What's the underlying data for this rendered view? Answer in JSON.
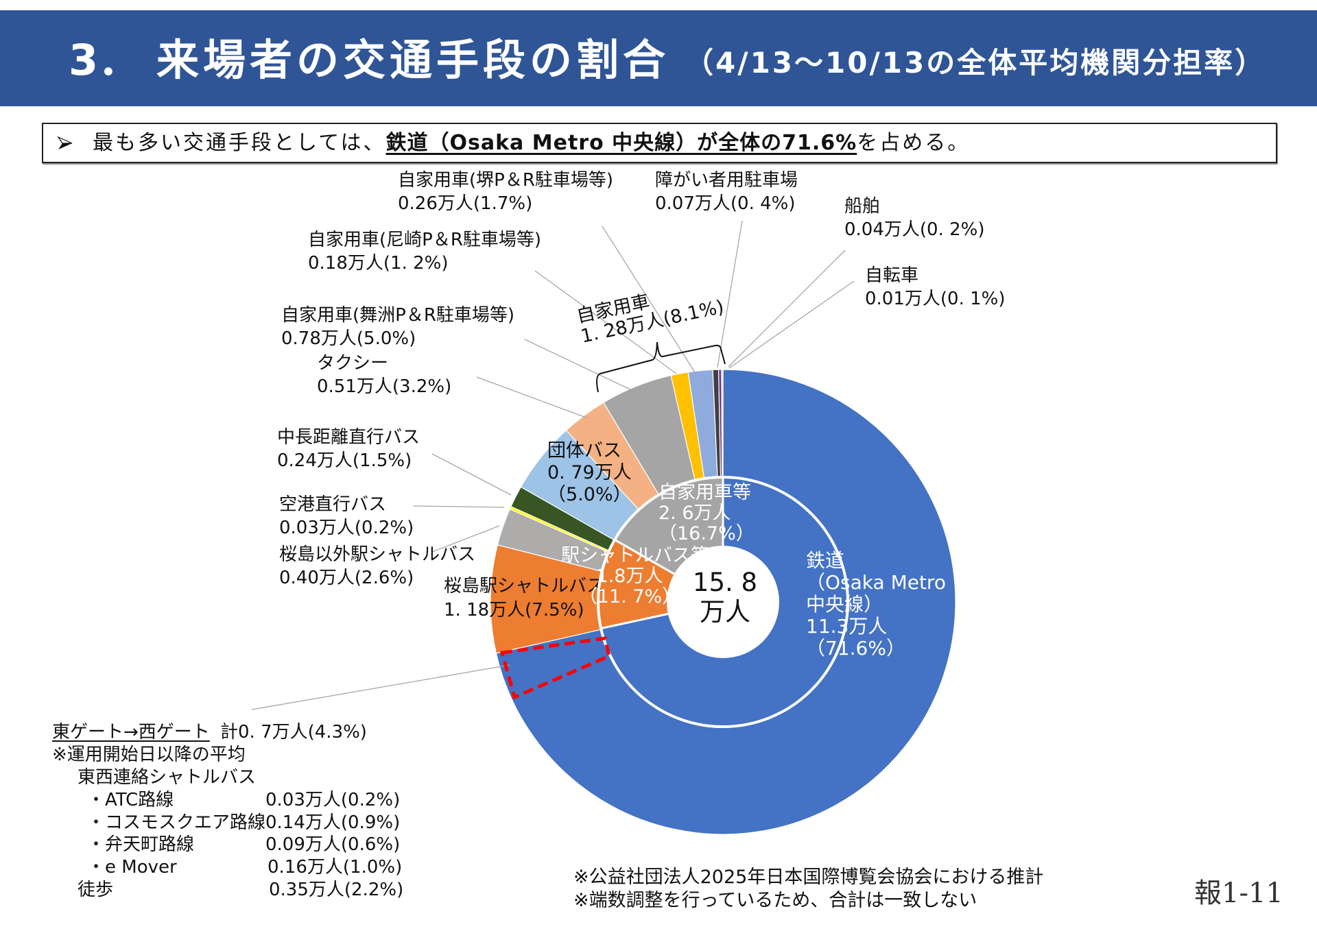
{
  "header": {
    "number": "3．",
    "title": "来場者の交通手段の割合",
    "subtitle": "（4/13〜10/13の全体平均機関分担率）",
    "background_color": "#2F5597"
  },
  "summary": {
    "bullet_icon": "arrowhead-bullet",
    "prefix": "最も多い交通手段としては、",
    "emphasis": "鉄道（Osaka Metro 中央線）が全体の71.6%",
    "suffix": "を占める。"
  },
  "chart_data": {
    "type": "pie",
    "variant": "two-ring doughnut",
    "title": "来場者の交通手段の割合",
    "unit": "万人",
    "center_total": {
      "display": "15. 8",
      "unit": "万人"
    },
    "outer": [
      {
        "label_lines": [
          "鉄道",
          "（Osaka Metro",
          "中央線）",
          "11.3万人",
          "（71.6%）"
        ],
        "value": 11.3,
        "percent": 71.6,
        "color": "#4472C4"
      },
      {
        "label_lines": [
          "桜島駅シャトルバス",
          "1. 18万人(7.5%)"
        ],
        "value": 1.18,
        "percent": 7.5,
        "color": "#ED7D31"
      },
      {
        "label_lines": [
          "桜島以外駅シャトルバス",
          "0.40万人(2.6%)"
        ],
        "value": 0.4,
        "percent": 2.6,
        "color": "#AEABAB"
      },
      {
        "label_lines": [
          "空港直行バス",
          "0.03万人(0.2%)"
        ],
        "value": 0.03,
        "percent": 0.2,
        "color": "#FFFF00"
      },
      {
        "label_lines": [
          "中長距離直行バス",
          "0.24万人(1.5%)"
        ],
        "value": 0.24,
        "percent": 1.5,
        "color": "#375623"
      },
      {
        "label_lines": [
          "団体バス",
          "0. 79万人",
          "（5.0%）"
        ],
        "value": 0.79,
        "percent": 5.0,
        "color": "#9DC3E6"
      },
      {
        "label_lines": [
          "タクシー",
          "0.51万人(3.2%)"
        ],
        "value": 0.51,
        "percent": 3.2,
        "color": "#F4B183"
      },
      {
        "label_lines": [
          "自家用車(舞洲P＆R駐車場等)",
          "0.78万人(5.0%)"
        ],
        "value": 0.78,
        "percent": 5.0,
        "color": "#A5A5A5"
      },
      {
        "label_lines": [
          "自家用車(尼崎P＆R駐車場等)",
          "0.18万人(1. 2%)"
        ],
        "value": 0.18,
        "percent": 1.2,
        "color": "#FFC000"
      },
      {
        "label_lines": [
          "自家用車(堺P＆R駐車場等)",
          "0.26万人(1.7%)"
        ],
        "value": 0.26,
        "percent": 1.7,
        "color": "#8FAADC"
      },
      {
        "label_lines": [
          "障がい者用駐車場",
          "0.07万人(0. 4%)"
        ],
        "value": 0.07,
        "percent": 0.4,
        "color": "#404040"
      },
      {
        "label_lines": [
          "船舶",
          "0.04万人(0. 2%)"
        ],
        "value": 0.04,
        "percent": 0.2,
        "color": "#7030A0"
      },
      {
        "label_lines": [
          "自転車",
          "0.01万人(0. 1%)"
        ],
        "value": 0.01,
        "percent": 0.1,
        "color": "#D9D9D9"
      }
    ],
    "inner": [
      {
        "label_lines": [],
        "value": 11.3,
        "percent": 71.6,
        "color": "#4472C4"
      },
      {
        "label_lines": [
          "駅シャトルバス等",
          "1.8万人",
          "（11. 7%）"
        ],
        "value": 1.8,
        "percent": 11.7,
        "color": "#ED7D31"
      },
      {
        "label_lines": [
          "自家用車等",
          "2. 6万人",
          "（16.7%）"
        ],
        "value": 2.6,
        "percent": 16.7,
        "color": "#A5A5A5"
      }
    ],
    "group_bracket": {
      "label_lines": [
        "自家用車",
        "1. 28万人(8.1%)"
      ],
      "value": 1.28,
      "percent": 8.1
    }
  },
  "gate_annotation": {
    "highlight_color": "#FF0000",
    "title": "東ゲート→西ゲート",
    "total": "計0. 7万人(4.3%)",
    "note": "※運用開始日以降の平均",
    "subgroup": "東西連絡シャトルバス",
    "rows": [
      {
        "name": "・ATC路線",
        "value": "0.03万人(0.2%)"
      },
      {
        "name": "・コスモスクエア路線",
        "value": "0.14万人(0.9%)"
      },
      {
        "name": "・弁天町路線",
        "value": "0.09万人(0.6%)"
      },
      {
        "name": "・e Mover",
        "value": "0.16万人(1.0%)"
      }
    ],
    "walk": {
      "name": "徒歩",
      "value": "0.35万人(2.2%)"
    }
  },
  "footnotes": [
    "※公益社団法人2025年日本国際博覧会協会における推計",
    "※端数調整を行っているため、合計は一致しない"
  ],
  "page_number": "報1-11"
}
